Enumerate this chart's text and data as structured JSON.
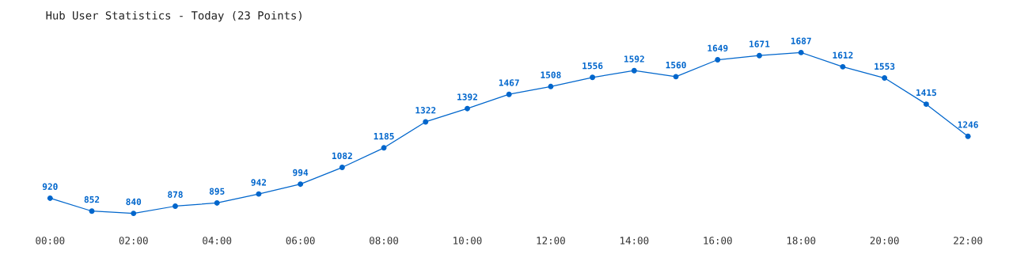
{
  "chart_data": {
    "type": "line",
    "title": "Hub User Statistics - Today (23 Points)",
    "x": [
      0,
      1,
      2,
      3,
      4,
      5,
      6,
      7,
      8,
      9,
      10,
      11,
      12,
      13,
      14,
      15,
      16,
      17,
      18,
      19,
      20,
      21,
      22
    ],
    "series": [
      {
        "color": "#0066cc",
        "values": [
          920,
          852,
          840,
          878,
          895,
          942,
          994,
          1082,
          1185,
          1322,
          1392,
          1467,
          1508,
          1556,
          1592,
          1560,
          1649,
          1671,
          1687,
          1612,
          1553,
          1415,
          1246
        ]
      }
    ],
    "xlim": [
      0,
      22
    ],
    "xticks": [
      {
        "value": 0,
        "label": "00:00"
      },
      {
        "value": 2,
        "label": "02:00"
      },
      {
        "value": 4,
        "label": "04:00"
      },
      {
        "value": 6,
        "label": "06:00"
      },
      {
        "value": 8,
        "label": "08:00"
      },
      {
        "value": 10,
        "label": "10:00"
      },
      {
        "value": 12,
        "label": "12:00"
      },
      {
        "value": 14,
        "label": "14:00"
      },
      {
        "value": 16,
        "label": "16:00"
      },
      {
        "value": 18,
        "label": "18:00"
      },
      {
        "value": 20,
        "label": "20:00"
      },
      {
        "value": 22,
        "label": "22:00"
      }
    ],
    "tick_labels": "x",
    "data_labels": true,
    "marker": "circle",
    "line_style": "solid",
    "grid": false,
    "legend": false
  }
}
